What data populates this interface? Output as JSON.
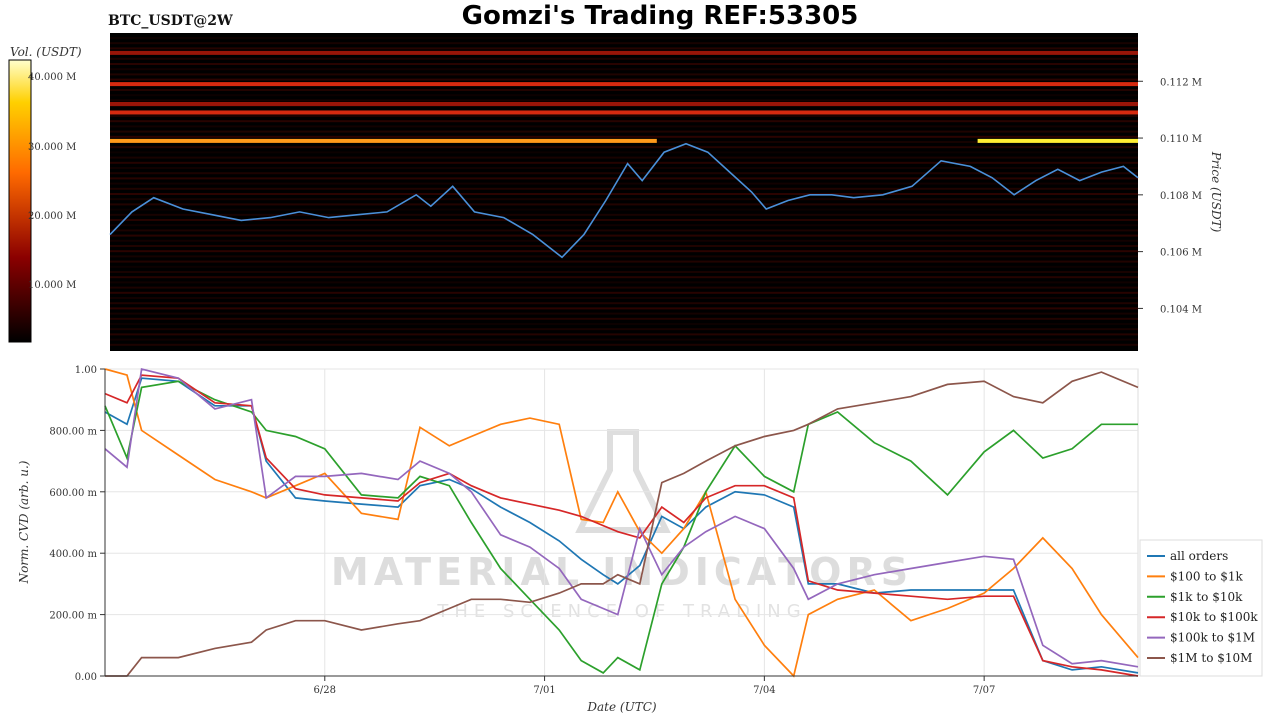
{
  "header": {
    "symbol": "BTC_USDT@2W",
    "title": "Gomzi's Trading REF:53305"
  },
  "watermark": {
    "brand": "MATERIAL INDICATORS",
    "tagline": "THE SCIENCE OF TRADING"
  },
  "colors": {
    "heatmap_bg": "#000000",
    "price_line": "#4a90d9",
    "colorbar_top": "#ffffcc",
    "colorbar_mid": "#ff6a00",
    "colorbar_low": "#8b0000"
  },
  "chart_data": [
    {
      "type": "heatmap",
      "title": "Gomzi's Trading REF:53305",
      "colorbar_label": "Vol. (USDT)",
      "colorbar_ticks": [
        "40.000 M",
        "30.000 M",
        "20.000 M",
        "10.000 M"
      ],
      "ylabel": "Price (USDT)",
      "y_ticks": [
        "0.112 M",
        "0.110 M",
        "0.108 M",
        "0.106 M",
        "0.104 M"
      ],
      "y_tick_values": [
        0.112,
        0.11,
        0.108,
        0.106,
        0.104
      ],
      "ylim": [
        0.1025,
        0.1137
      ],
      "xlim": [
        0,
        14.1
      ],
      "price_series": {
        "x": [
          0,
          0.3,
          0.6,
          1.0,
          1.4,
          1.8,
          2.2,
          2.6,
          3.0,
          3.4,
          3.8,
          4.2,
          4.4,
          4.7,
          5.0,
          5.4,
          5.8,
          6.2,
          6.5,
          6.8,
          7.1,
          7.3,
          7.6,
          7.9,
          8.2,
          8.5,
          8.8,
          9.0,
          9.3,
          9.6,
          9.9,
          10.2,
          10.6,
          11.0,
          11.4,
          11.8,
          12.1,
          12.4,
          12.7,
          13.0,
          13.3,
          13.6,
          13.9,
          14.1
        ],
        "y": [
          0.1066,
          0.1074,
          0.1079,
          0.1075,
          0.1073,
          0.1071,
          0.1072,
          0.1074,
          0.1072,
          0.1073,
          0.1074,
          0.108,
          0.1076,
          0.1083,
          0.1074,
          0.1072,
          0.1066,
          0.1058,
          0.1066,
          0.1078,
          0.1091,
          0.1085,
          0.1095,
          0.1098,
          0.1095,
          0.1088,
          0.1081,
          0.1075,
          0.1078,
          0.108,
          0.108,
          0.1079,
          0.108,
          0.1083,
          0.1092,
          0.109,
          0.1086,
          0.108,
          0.1085,
          0.1089,
          0.1085,
          0.1088,
          0.109,
          0.1086
        ]
      },
      "walls": [
        {
          "price": 0.1099,
          "x_start": 0,
          "x_end": 7.5,
          "intensity": "high"
        },
        {
          "price": 0.1099,
          "x_start": 11.9,
          "x_end": 14.1,
          "intensity": "max"
        },
        {
          "price": 0.1119,
          "x_start": 0,
          "x_end": 14.1,
          "intensity": "mid"
        },
        {
          "price": 0.1109,
          "x_start": 0,
          "x_end": 14.1,
          "intensity": "mid"
        },
        {
          "price": 0.113,
          "x_start": 0,
          "x_end": 14.1,
          "intensity": "low"
        },
        {
          "price": 0.1112,
          "x_start": 0,
          "x_end": 14.1,
          "intensity": "low"
        }
      ]
    },
    {
      "type": "line",
      "xlabel": "Date (UTC)",
      "ylabel": "Norm. CVD (arb. u.)",
      "x_ticks": [
        "6/28",
        "7/01",
        "7/04",
        "7/07"
      ],
      "x_tick_values": [
        3,
        6,
        9,
        12
      ],
      "xlim": [
        0,
        14.1
      ],
      "y_ticks": [
        "0.00",
        "200.00 m",
        "400.00 m",
        "600.00 m",
        "800.00 m",
        "1.00"
      ],
      "y_tick_values": [
        0,
        0.2,
        0.4,
        0.6,
        0.8,
        1.0
      ],
      "ylim": [
        0,
        1.0
      ],
      "x": [
        0,
        0.3,
        0.5,
        1.0,
        1.5,
        2.0,
        2.2,
        2.6,
        3.0,
        3.5,
        4.0,
        4.3,
        4.7,
        5.0,
        5.4,
        5.8,
        6.2,
        6.5,
        6.8,
        7.0,
        7.3,
        7.6,
        7.9,
        8.2,
        8.6,
        9.0,
        9.4,
        9.6,
        10.0,
        10.5,
        11.0,
        11.5,
        12.0,
        12.4,
        12.8,
        13.2,
        13.6,
        14.1
      ],
      "series": [
        {
          "name": "all orders",
          "color": "#1f77b4",
          "values": [
            0.86,
            0.82,
            0.97,
            0.96,
            0.88,
            0.88,
            0.7,
            0.58,
            0.57,
            0.56,
            0.55,
            0.62,
            0.64,
            0.61,
            0.55,
            0.5,
            0.44,
            0.38,
            0.33,
            0.3,
            0.36,
            0.52,
            0.48,
            0.55,
            0.6,
            0.59,
            0.55,
            0.3,
            0.3,
            0.27,
            0.28,
            0.28,
            0.28,
            0.28,
            0.05,
            0.02,
            0.03,
            0.01
          ]
        },
        {
          "name": "$100 to $1k",
          "color": "#ff7f0e",
          "values": [
            1.0,
            0.98,
            0.8,
            0.72,
            0.64,
            0.6,
            0.58,
            0.62,
            0.66,
            0.53,
            0.51,
            0.81,
            0.75,
            0.78,
            0.82,
            0.84,
            0.82,
            0.51,
            0.5,
            0.6,
            0.47,
            0.4,
            0.48,
            0.6,
            0.25,
            0.1,
            0.0,
            0.2,
            0.25,
            0.28,
            0.18,
            0.22,
            0.27,
            0.35,
            0.45,
            0.35,
            0.2,
            0.06
          ]
        },
        {
          "name": "$1k to $10k",
          "color": "#2ca02c",
          "values": [
            0.88,
            0.71,
            0.94,
            0.96,
            0.9,
            0.86,
            0.8,
            0.78,
            0.74,
            0.59,
            0.58,
            0.65,
            0.62,
            0.5,
            0.35,
            0.25,
            0.15,
            0.05,
            0.01,
            0.06,
            0.02,
            0.3,
            0.42,
            0.6,
            0.75,
            0.65,
            0.6,
            0.82,
            0.86,
            0.76,
            0.7,
            0.59,
            0.73,
            0.8,
            0.71,
            0.74,
            0.82,
            0.82
          ]
        },
        {
          "name": "$10k to $100k",
          "color": "#d62728",
          "values": [
            0.92,
            0.89,
            0.98,
            0.97,
            0.89,
            0.88,
            0.71,
            0.61,
            0.59,
            0.58,
            0.57,
            0.63,
            0.66,
            0.62,
            0.58,
            0.56,
            0.54,
            0.52,
            0.49,
            0.47,
            0.45,
            0.55,
            0.5,
            0.58,
            0.62,
            0.62,
            0.58,
            0.31,
            0.28,
            0.27,
            0.26,
            0.25,
            0.26,
            0.26,
            0.05,
            0.03,
            0.02,
            0.0
          ]
        },
        {
          "name": "$100k to $1M",
          "color": "#9467bd",
          "values": [
            0.74,
            0.68,
            1.0,
            0.97,
            0.87,
            0.9,
            0.58,
            0.65,
            0.65,
            0.66,
            0.64,
            0.7,
            0.66,
            0.6,
            0.46,
            0.42,
            0.35,
            0.25,
            0.22,
            0.2,
            0.48,
            0.33,
            0.42,
            0.47,
            0.52,
            0.48,
            0.35,
            0.25,
            0.3,
            0.33,
            0.35,
            0.37,
            0.39,
            0.38,
            0.1,
            0.04,
            0.05,
            0.03
          ]
        },
        {
          "name": "$1M to $10M",
          "color": "#8c564b",
          "values": [
            0.0,
            0.0,
            0.06,
            0.06,
            0.09,
            0.11,
            0.15,
            0.18,
            0.18,
            0.15,
            0.17,
            0.18,
            0.22,
            0.25,
            0.25,
            0.24,
            0.27,
            0.3,
            0.3,
            0.33,
            0.3,
            0.63,
            0.66,
            0.7,
            0.75,
            0.78,
            0.8,
            0.82,
            0.87,
            0.89,
            0.91,
            0.95,
            0.96,
            0.91,
            0.89,
            0.96,
            0.99,
            0.94
          ]
        }
      ],
      "legend_position": "right"
    }
  ]
}
